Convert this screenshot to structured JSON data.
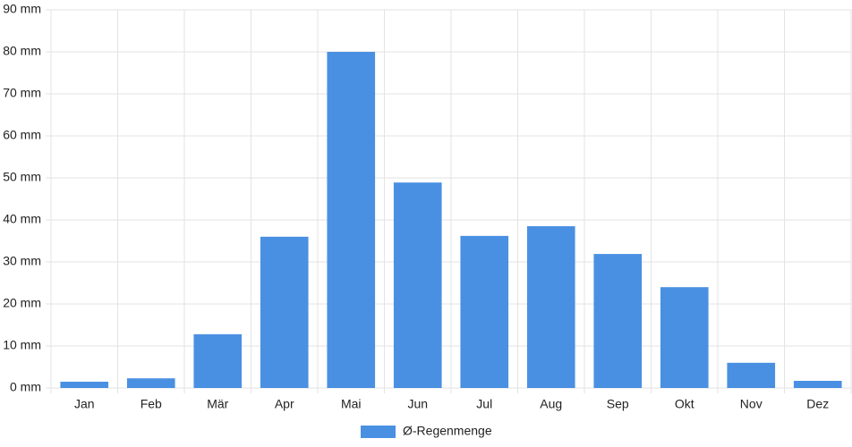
{
  "chart_data": {
    "type": "bar",
    "categories": [
      "Jan",
      "Feb",
      "Mär",
      "Apr",
      "Mai",
      "Jun",
      "Jul",
      "Aug",
      "Sep",
      "Okt",
      "Nov",
      "Dez"
    ],
    "series": [
      {
        "name": "Ø-Regenmenge",
        "color": "#4a90e2",
        "values": [
          1.5,
          2.3,
          12.8,
          36,
          80,
          48.9,
          36.2,
          38.5,
          31.9,
          24,
          6,
          1.7
        ]
      }
    ],
    "ylim": [
      0,
      90
    ],
    "yticks": [
      {
        "value": 0,
        "label": "0 mm"
      },
      {
        "value": 10,
        "label": "10 mm"
      },
      {
        "value": 20,
        "label": "20 mm"
      },
      {
        "value": 30,
        "label": "30 mm"
      },
      {
        "value": 40,
        "label": "40 mm"
      },
      {
        "value": 50,
        "label": "50 mm"
      },
      {
        "value": 60,
        "label": "60 mm"
      },
      {
        "value": 70,
        "label": "70 mm"
      },
      {
        "value": 80,
        "label": "80 mm"
      },
      {
        "value": 90,
        "label": "90 mm"
      }
    ],
    "grid": true,
    "legend": "bottom"
  }
}
